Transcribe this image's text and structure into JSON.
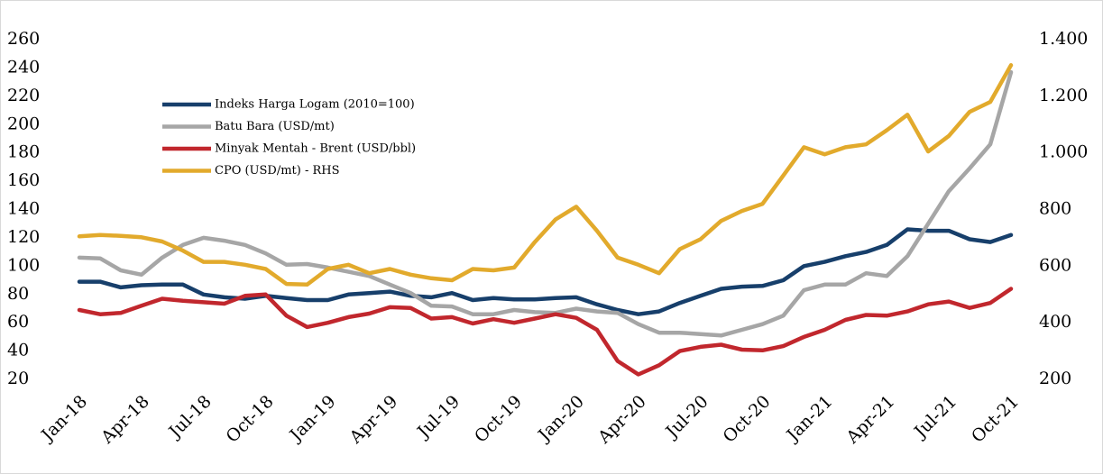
{
  "chart_data": {
    "type": "line",
    "categories": [
      "Jan-18",
      null,
      null,
      "Apr-18",
      null,
      null,
      "Jul-18",
      null,
      null,
      "Oct-18",
      null,
      null,
      "Jan-19",
      null,
      null,
      "Apr-19",
      null,
      null,
      "Jul-19",
      null,
      null,
      "Oct-19",
      null,
      null,
      "Jan-20",
      null,
      null,
      "Apr-20",
      null,
      null,
      "Jul-20",
      null,
      null,
      "Oct-20",
      null,
      null,
      "Jan-21",
      null,
      null,
      "Apr-21",
      null,
      null,
      "Jul-21",
      null,
      null,
      "Oct-21"
    ],
    "series": [
      {
        "name": "Indeks Harga Logam (2010=100)",
        "color": "#173f6b",
        "values": [
          89,
          89,
          85,
          86.5,
          87,
          87,
          80,
          78,
          77,
          79,
          77.5,
          76,
          76,
          80,
          81,
          82,
          79,
          78,
          81,
          76,
          77.5,
          76.5,
          76.5,
          77.5,
          78,
          73,
          69,
          66,
          68,
          74,
          79,
          84,
          85.5,
          86,
          90,
          100,
          103,
          107,
          110,
          115,
          126,
          125,
          125,
          119,
          117,
          122
        ]
      },
      {
        "name": "Batu Bara (USD/mt)",
        "color": "#a6a6a6",
        "values": [
          106,
          105.5,
          97,
          94,
          106,
          115,
          120,
          118,
          115,
          109,
          101,
          101.5,
          99,
          96,
          93,
          87,
          81,
          72,
          71.5,
          66,
          66,
          69,
          67.5,
          67,
          70,
          68,
          67,
          59,
          53,
          53,
          52,
          51,
          55,
          59,
          65,
          83,
          87,
          87,
          95,
          93,
          107,
          130,
          153,
          169,
          186,
          237
        ]
      },
      {
        "name": "Minyak Mentah - Brent (USD/bbl)",
        "color": "#c1272d",
        "values": [
          69,
          66,
          67,
          72,
          77,
          75.5,
          74.5,
          73.5,
          79,
          80,
          65,
          57,
          60,
          64,
          66.5,
          71,
          70.5,
          63,
          64,
          59.5,
          62.5,
          60,
          63,
          66,
          63.5,
          55,
          33,
          23.5,
          30,
          40,
          43,
          44.5,
          41,
          40.5,
          43.5,
          50,
          55,
          62,
          65.5,
          65,
          68,
          73,
          75,
          70.5,
          74,
          84
        ]
      },
      {
        "name": "CPO (USD/mt) - RHS",
        "color": "#e2aa2c",
        "axis": "y2",
        "values": [
          705,
          710,
          707,
          702,
          687,
          655,
          615,
          615,
          605,
          590,
          537,
          535,
          590,
          605,
          575,
          590,
          570,
          557,
          550,
          590,
          585,
          595,
          685,
          765,
          810,
          725,
          630,
          605,
          575,
          660,
          695,
          760,
          795,
          820,
          920,
          1020,
          995,
          1020,
          1030,
          1080,
          1135,
          1005,
          1060,
          1145,
          1180,
          1310
        ]
      }
    ],
    "ylim": [
      20,
      260
    ],
    "yticks": [
      20,
      40,
      60,
      80,
      100,
      120,
      140,
      160,
      180,
      200,
      220,
      240,
      260
    ],
    "y2lim": [
      200,
      1400
    ],
    "y2ticks": [
      200,
      400,
      600,
      800,
      {
        "value": 1000,
        "label": "1.000"
      },
      {
        "value": 1200,
        "label": "1.200"
      },
      {
        "value": 1400,
        "label": "1.400"
      }
    ]
  }
}
